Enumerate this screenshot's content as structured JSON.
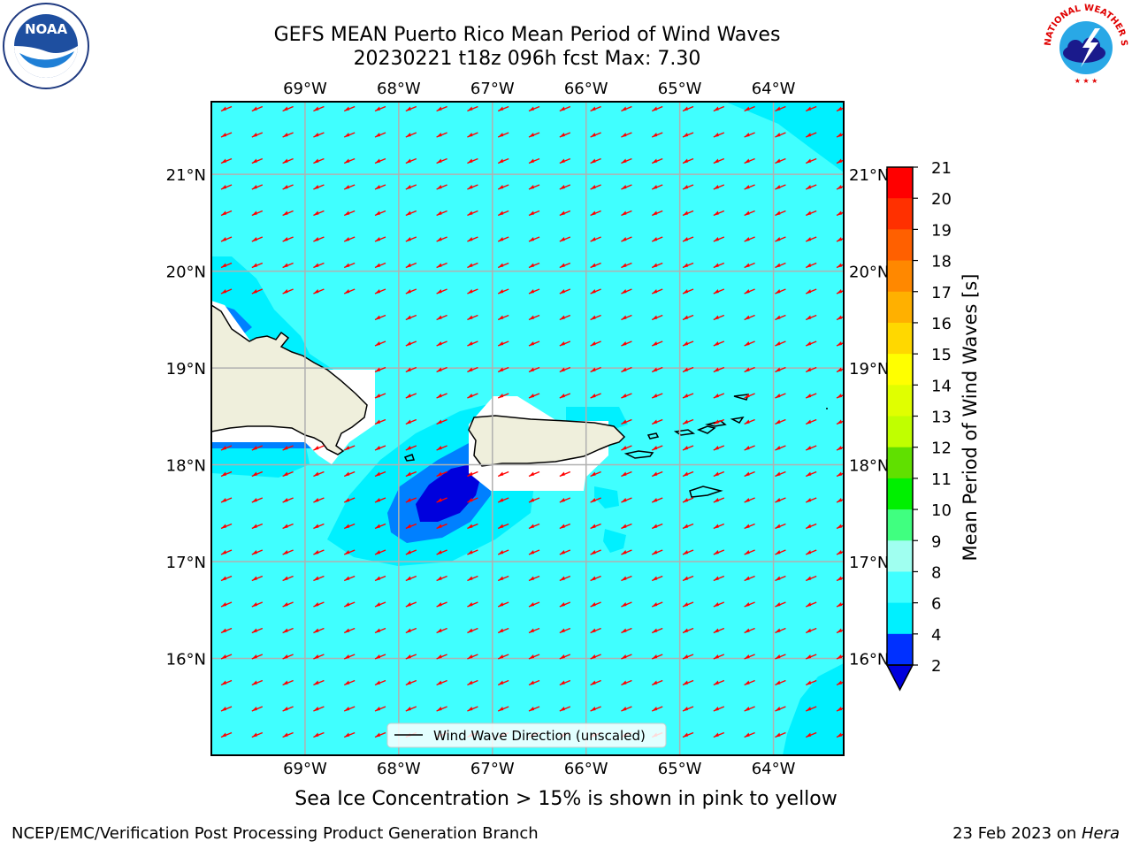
{
  "title": {
    "line1": "GEFS MEAN Puerto Rico Mean Period of Wind Waves",
    "line2": "20230221 t18z 096h fcst   Max: 7.30"
  },
  "logos": {
    "left": {
      "icon": "noaa-logo",
      "text": "NOAA"
    },
    "right": {
      "icon": "nws-logo",
      "text": "NATIONAL WEATHER SERVICE"
    }
  },
  "map": {
    "lon_ticks": [
      "69°W",
      "68°W",
      "67°W",
      "66°W",
      "65°W",
      "64°W"
    ],
    "lat_ticks": [
      "21°N",
      "20°N",
      "19°N",
      "18°N",
      "17°N",
      "16°N"
    ],
    "lon_range": [
      -70.0,
      -63.25
    ],
    "lat_range": [
      15.0,
      21.75
    ],
    "arrow_direction": "toward southwest",
    "arrow_color": "#ff0000",
    "legend_label": "Wind Wave Direction (unscaled)"
  },
  "colorbar": {
    "label": "Mean Period of Wind Waves [s]",
    "ticks": [
      "2",
      "4",
      "6",
      "8",
      "9",
      "10",
      "11",
      "12",
      "13",
      "14",
      "15",
      "16",
      "17",
      "18",
      "19",
      "20",
      "21"
    ],
    "colors": [
      "#0030ff",
      "#00f0ff",
      "#40ffff",
      "#a0fff0",
      "#40ff80",
      "#00f000",
      "#60e000",
      "#c0ff00",
      "#e0ff00",
      "#ffff00",
      "#ffd800",
      "#ffb000",
      "#ff8800",
      "#ff6000",
      "#ff3000",
      "#ff0000"
    ],
    "under_color": "#0000dd"
  },
  "footer": {
    "sea_ice_note": "Sea Ice Concentration > 15% is shown in pink to yellow",
    "left": "NCEP/EMC/Verification Post Processing Product Generation Branch",
    "right_prefix": "23 Feb 2023 on ",
    "right_host": "Hera"
  }
}
